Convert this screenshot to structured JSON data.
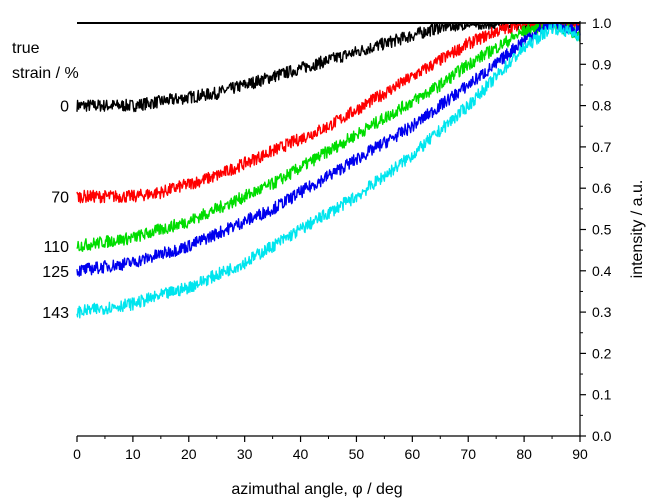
{
  "chart_data": {
    "type": "line",
    "xlabel": "azimuthal angle, φ / deg",
    "ylabel": "intensity / a.u.",
    "xlim": [
      0,
      90
    ],
    "ylim": [
      0,
      1.0
    ],
    "x_ticks": [
      0,
      10,
      20,
      30,
      40,
      50,
      60,
      70,
      80,
      90
    ],
    "y_ticks": [
      0.0,
      0.1,
      0.2,
      0.3,
      0.4,
      0.5,
      0.6,
      0.7,
      0.8,
      0.9,
      1.0
    ],
    "y_tick_labels": [
      "0.0",
      "0.1",
      "0.2",
      "0.3",
      "0.4",
      "0.5",
      "0.6",
      "0.7",
      "0.8",
      "0.9",
      "1.0"
    ],
    "y_axis_side": "right",
    "grid": false,
    "legend": "none",
    "annotation_title": [
      "true",
      "strain / %"
    ],
    "x": [
      0,
      5,
      10,
      15,
      20,
      25,
      30,
      35,
      40,
      45,
      50,
      55,
      60,
      65,
      70,
      75,
      80,
      85,
      90
    ],
    "series": [
      {
        "label": "0",
        "color": "#000000",
        "values": [
          0.8,
          0.8,
          0.8,
          0.81,
          0.82,
          0.83,
          0.85,
          0.87,
          0.89,
          0.91,
          0.93,
          0.95,
          0.97,
          0.99,
          1.0,
          1.0,
          1.0,
          1.0,
          1.0
        ]
      },
      {
        "label": "70",
        "color": "#ff0000",
        "values": [
          0.58,
          0.58,
          0.58,
          0.59,
          0.61,
          0.63,
          0.66,
          0.69,
          0.72,
          0.75,
          0.79,
          0.83,
          0.87,
          0.91,
          0.95,
          0.98,
          1.0,
          1.0,
          1.0
        ]
      },
      {
        "label": "110",
        "color": "#00dd00",
        "values": [
          0.46,
          0.47,
          0.48,
          0.5,
          0.52,
          0.55,
          0.58,
          0.61,
          0.65,
          0.69,
          0.73,
          0.77,
          0.81,
          0.85,
          0.9,
          0.94,
          0.98,
          1.0,
          0.97
        ]
      },
      {
        "label": "125",
        "color": "#0000ee",
        "values": [
          0.4,
          0.41,
          0.42,
          0.44,
          0.46,
          0.49,
          0.52,
          0.55,
          0.59,
          0.63,
          0.67,
          0.71,
          0.75,
          0.8,
          0.85,
          0.9,
          0.96,
          1.0,
          0.98
        ]
      },
      {
        "label": "143",
        "color": "#00e5ee",
        "values": [
          0.3,
          0.31,
          0.32,
          0.34,
          0.36,
          0.39,
          0.42,
          0.46,
          0.5,
          0.54,
          0.58,
          0.63,
          0.68,
          0.74,
          0.8,
          0.87,
          0.94,
          0.99,
          0.97
        ]
      }
    ]
  }
}
